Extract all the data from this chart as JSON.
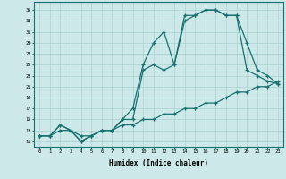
{
  "xlabel": "Humidex (Indice chaleur)",
  "bg_color": "#cce8e8",
  "grid_color": "#aad0d0",
  "line_color": "#1a7070",
  "yticks": [
    11,
    13,
    15,
    17,
    19,
    21,
    23,
    25,
    27,
    29,
    31,
    33,
    35
  ],
  "xticks": [
    0,
    1,
    2,
    3,
    4,
    5,
    6,
    7,
    8,
    9,
    10,
    11,
    12,
    13,
    14,
    15,
    16,
    17,
    18,
    19,
    20,
    21,
    22,
    23
  ],
  "line1_y": [
    12,
    12,
    14,
    13,
    11,
    12,
    13,
    13,
    15,
    17,
    25,
    29,
    31,
    25,
    34,
    34,
    35,
    35,
    34,
    34,
    29,
    24,
    23,
    21.5
  ],
  "line2_y": [
    12,
    12,
    14,
    13,
    11,
    12,
    13,
    13,
    15,
    15,
    24,
    25,
    24,
    25,
    33,
    34,
    35,
    35,
    34,
    34,
    24,
    23,
    22,
    21.5
  ],
  "line3_y": [
    12,
    12,
    13,
    13,
    12,
    12,
    13,
    13,
    14,
    14,
    15,
    15,
    16,
    16,
    17,
    17,
    18,
    18,
    19,
    20,
    20,
    21,
    21,
    22
  ]
}
